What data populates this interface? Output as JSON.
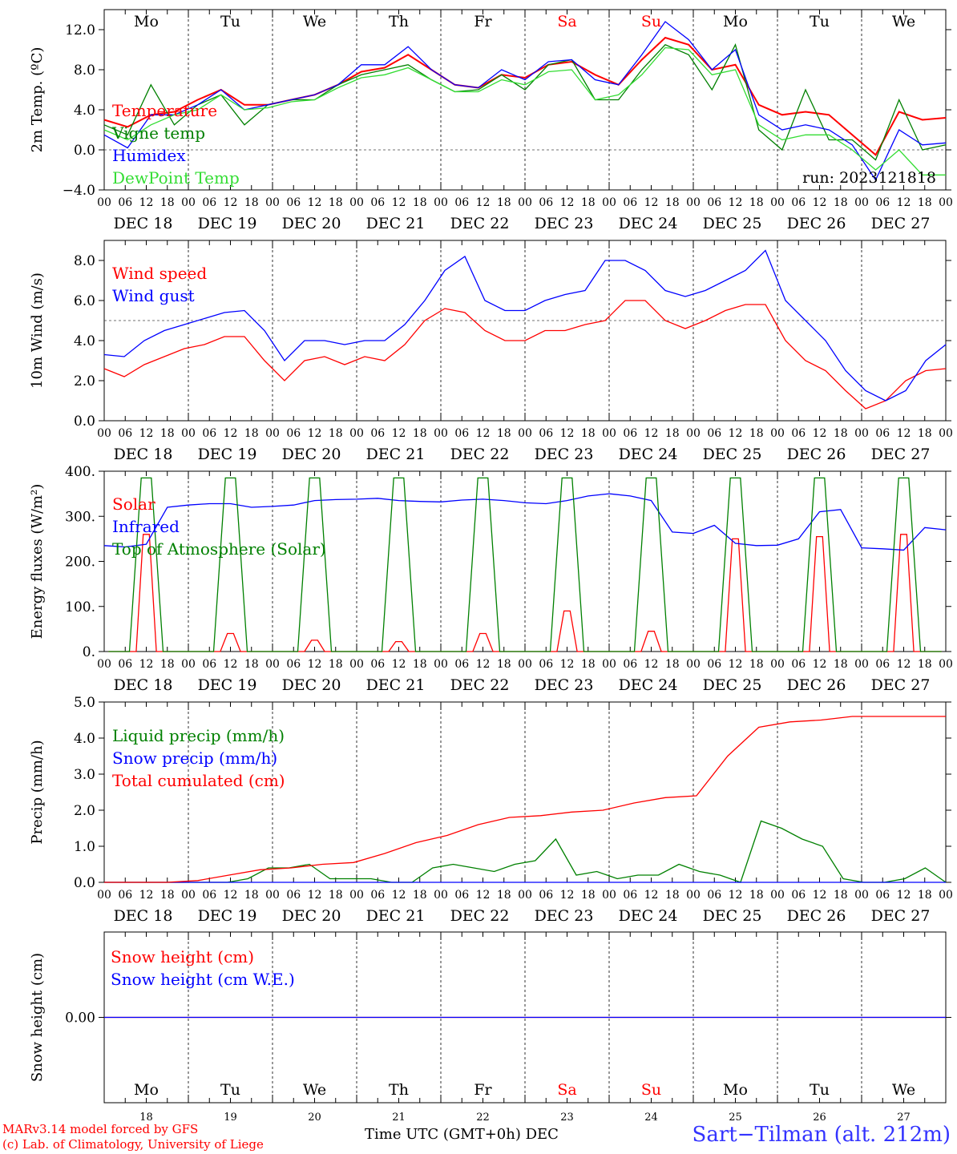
{
  "chart_data": [
    {
      "type": "line",
      "ylabel": "2m Temp. (ºC)",
      "ylim": [
        -4,
        14
      ],
      "yticks": [
        "−4.0",
        "0.0",
        "4.0",
        "8.0",
        "12.0"
      ],
      "ytick_values": [
        -4,
        0,
        4,
        8,
        12
      ],
      "ref_line": 0,
      "annotation": "run: 2023121818",
      "series": [
        {
          "name": "Temperature",
          "color": "#ff0000",
          "values": [
            3,
            2.3,
            3.5,
            3.8,
            5,
            6,
            4.5,
            4.5,
            5,
            5.5,
            6.5,
            7.8,
            8.2,
            9.5,
            8,
            6.5,
            6.2,
            7.5,
            7.2,
            8.5,
            8.8,
            7.5,
            6.5,
            9,
            11.2,
            10.5,
            8,
            8.5,
            4.5,
            3.5,
            3.8,
            3.5,
            1.5,
            -0.5,
            3.8,
            3,
            3.2
          ]
        },
        {
          "name": "Vigne temp",
          "color": "#008000",
          "values": [
            2.5,
            1.5,
            6.5,
            2.5,
            4.5,
            5.5,
            2.5,
            4.5,
            5,
            5,
            6.5,
            7.5,
            8,
            8.5,
            7,
            5.8,
            6,
            7.5,
            6,
            8.5,
            9,
            5,
            5,
            8,
            10.5,
            9.5,
            6,
            10.5,
            2,
            0,
            6,
            1,
            1,
            -1,
            5,
            0,
            0.5
          ]
        },
        {
          "name": "Humidex",
          "color": "#0000ff",
          "values": [
            1.5,
            0.2,
            3.5,
            3.5,
            4.5,
            6,
            4,
            4.5,
            5,
            5.5,
            6.5,
            8.5,
            8.5,
            10.3,
            8,
            6.5,
            6.2,
            8,
            7,
            8.8,
            9,
            7,
            6.5,
            9.5,
            12.8,
            11,
            8,
            10,
            3.5,
            2,
            2.5,
            2,
            0.5,
            -3,
            2,
            0.5,
            0.7
          ]
        },
        {
          "name": "DewPoint Temp",
          "color": "#33dd33",
          "values": [
            2,
            1,
            2.5,
            3.5,
            4,
            5.5,
            4,
            4.2,
            4.8,
            5,
            6.2,
            7.2,
            7.5,
            8.2,
            7,
            5.8,
            5.8,
            7,
            6.5,
            7.8,
            8,
            5,
            5.5,
            7.5,
            10.2,
            10,
            7.5,
            8,
            2.5,
            1,
            1.5,
            1.5,
            0,
            -2,
            0,
            -2.5,
            -2.5
          ]
        }
      ]
    },
    {
      "type": "line",
      "ylabel": "10m Wind (m/s)",
      "ylim": [
        0,
        9
      ],
      "yticks": [
        "0.0",
        "2.0",
        "4.0",
        "6.0",
        "8.0"
      ],
      "ytick_values": [
        0,
        2,
        4,
        6,
        8
      ],
      "ref_line": 5,
      "series": [
        {
          "name": "Wind speed",
          "color": "#ff0000",
          "values": [
            2.6,
            2.2,
            2.8,
            3.2,
            3.6,
            3.8,
            4.2,
            4.2,
            3,
            2,
            3,
            3.2,
            2.8,
            3.2,
            3,
            3.8,
            5,
            5.6,
            5.4,
            4.5,
            4,
            4,
            4.5,
            4.5,
            4.8,
            5,
            6,
            6,
            5,
            4.6,
            5,
            5.5,
            5.8,
            5.8,
            4,
            3,
            2.5,
            1.5,
            0.6,
            1,
            2,
            2.5,
            2.6
          ]
        },
        {
          "name": "Wind gust",
          "color": "#0000ff",
          "values": [
            3.3,
            3.2,
            4,
            4.5,
            4.8,
            5.1,
            5.4,
            5.5,
            4.5,
            3,
            4,
            4,
            3.8,
            4,
            4,
            4.8,
            6,
            7.5,
            8.2,
            6,
            5.5,
            5.5,
            6,
            6.3,
            6.5,
            8,
            8,
            7.5,
            6.5,
            6.2,
            6.5,
            7,
            7.5,
            8.5,
            6,
            5,
            4,
            2.5,
            1.5,
            1,
            1.5,
            3,
            3.8
          ]
        }
      ]
    },
    {
      "type": "line",
      "ylabel": "Energy fluxes (W/m²)",
      "ylim": [
        0,
        400
      ],
      "yticks": [
        "0.",
        "100.",
        "200.",
        "300.",
        "400."
      ],
      "ytick_values": [
        0,
        100,
        200,
        300,
        400
      ],
      "series": [
        {
          "name": "Solar",
          "color": "#ff0000",
          "peaks": [
            260,
            40,
            25,
            22,
            40,
            90,
            45,
            250,
            255,
            260
          ]
        },
        {
          "name": "Infrared",
          "color": "#0000ff",
          "values": [
            235,
            232,
            238,
            320,
            325,
            328,
            328,
            320,
            322,
            325,
            335,
            337,
            338,
            340,
            335,
            333,
            332,
            336,
            338,
            335,
            330,
            328,
            335,
            345,
            350,
            345,
            335,
            265,
            262,
            280,
            240,
            235,
            236,
            250,
            310,
            315,
            230,
            228,
            225,
            275,
            270
          ]
        },
        {
          "name": "Top of Atmosphere (Solar)",
          "color": "#008000",
          "peaks": [
            385,
            385,
            385,
            385,
            385,
            385,
            385,
            385,
            385,
            385
          ]
        }
      ]
    },
    {
      "type": "line",
      "ylabel": "Precip (mm/h)",
      "ylim": [
        0,
        5
      ],
      "yticks": [
        "0.0",
        "1.0",
        "2.0",
        "3.0",
        "4.0",
        "5.0"
      ],
      "ytick_values": [
        0,
        1,
        2,
        3,
        4,
        5
      ],
      "series": [
        {
          "name": "Liquid precip (mm/h)",
          "color": "#008000",
          "values": [
            0,
            0,
            0,
            0,
            0,
            0,
            0,
            0.1,
            0.4,
            0.4,
            0.5,
            0.1,
            0.1,
            0.1,
            0,
            0,
            0.4,
            0.5,
            0.4,
            0.3,
            0.5,
            0.6,
            1.2,
            0.2,
            0.3,
            0.1,
            0.2,
            0.2,
            0.5,
            0.3,
            0.2,
            0,
            1.7,
            1.5,
            1.2,
            1,
            0.1,
            0,
            0,
            0.1,
            0.4,
            0
          ]
        },
        {
          "name": "Snow precip (mm/h)",
          "color": "#0000ff",
          "values": [
            0,
            0
          ]
        },
        {
          "name": "Total cumulated (cm)",
          "color": "#ff0000",
          "values": [
            0,
            0,
            0,
            0.05,
            0.2,
            0.35,
            0.4,
            0.5,
            0.55,
            0.8,
            1.1,
            1.3,
            1.6,
            1.8,
            1.85,
            1.95,
            2,
            2.2,
            2.35,
            2.4,
            3.5,
            4.3,
            4.45,
            4.5,
            4.6,
            4.6,
            4.6,
            4.6
          ]
        }
      ]
    },
    {
      "type": "line",
      "ylabel": "Snow height (cm)",
      "ylim": [
        -1,
        1
      ],
      "yticks": [
        "0.00"
      ],
      "ytick_values": [
        0
      ],
      "series": [
        {
          "name": "Snow height (cm)",
          "color": "#ff0000",
          "values": [
            0,
            0
          ]
        },
        {
          "name": "Snow height (cm W.E.)",
          "color": "#0000ff",
          "values": [
            0,
            0
          ]
        }
      ]
    }
  ],
  "days": [
    {
      "abbr": "Mo",
      "date": "DEC 18",
      "num": "18",
      "color": "#000000"
    },
    {
      "abbr": "Tu",
      "date": "DEC 19",
      "num": "19",
      "color": "#000000"
    },
    {
      "abbr": "We",
      "date": "DEC 20",
      "num": "20",
      "color": "#000000"
    },
    {
      "abbr": "Th",
      "date": "DEC 21",
      "num": "21",
      "color": "#000000"
    },
    {
      "abbr": "Fr",
      "date": "DEC 22",
      "num": "22",
      "color": "#000000"
    },
    {
      "abbr": "Sa",
      "date": "DEC 23",
      "num": "23",
      "color": "#ff0000"
    },
    {
      "abbr": "Su",
      "date": "DEC 24",
      "num": "24",
      "color": "#ff0000"
    },
    {
      "abbr": "Mo",
      "date": "DEC 25",
      "num": "25",
      "color": "#000000"
    },
    {
      "abbr": "Tu",
      "date": "DEC 26",
      "num": "26",
      "color": "#000000"
    },
    {
      "abbr": "We",
      "date": "DEC 27",
      "num": "27",
      "color": "#000000"
    }
  ],
  "hour_labels": [
    "00",
    "06",
    "12",
    "18"
  ],
  "final_hour_label": "00",
  "footer": {
    "credit_line1": "MARv3.14 model forced by GFS",
    "credit_line2": "(c) Lab. of Climatology, University of Liege",
    "xaxis_label": "Time UTC (GMT+0h)",
    "month": "DEC",
    "station": "Sart−Tilman (alt. 212m)",
    "credit_color": "#ff0000",
    "station_color": "#3333ff"
  }
}
